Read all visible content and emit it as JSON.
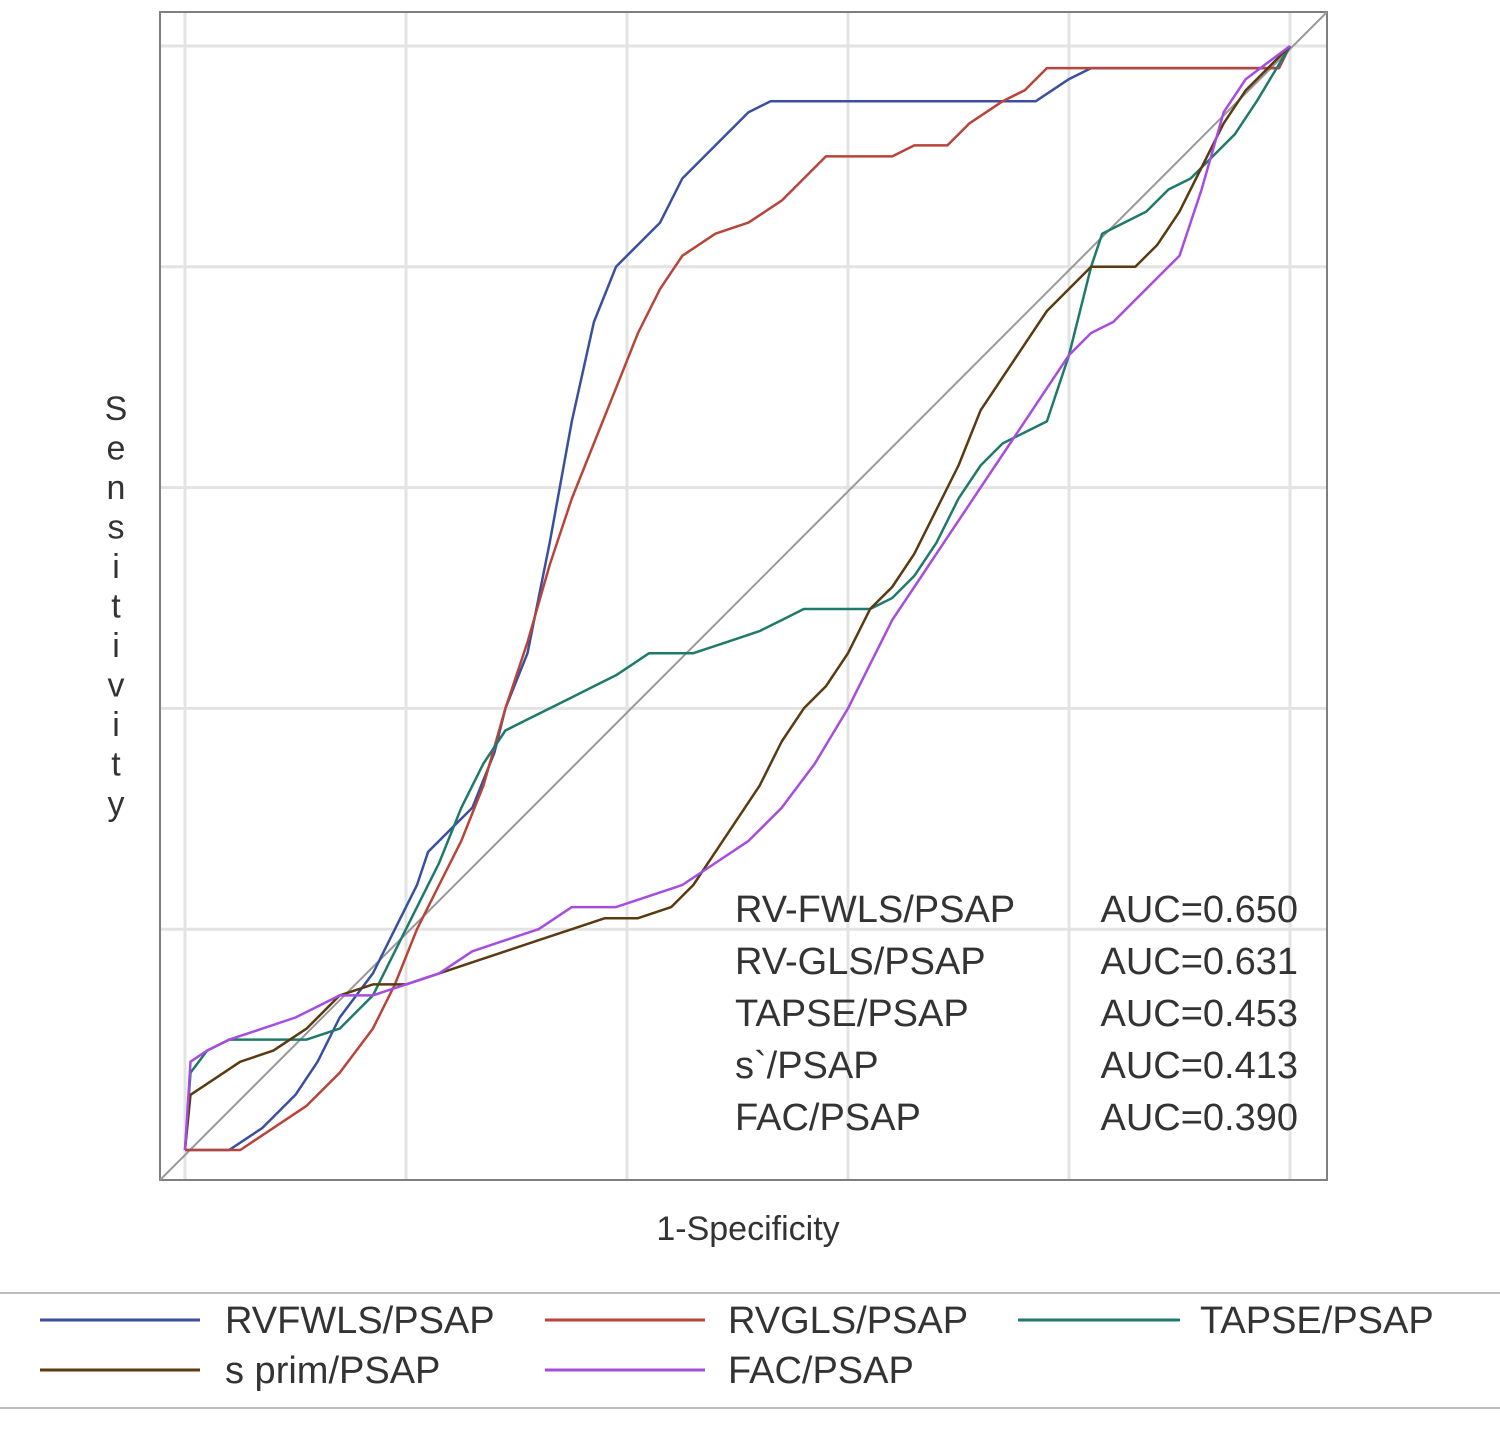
{
  "chart_data": {
    "type": "line",
    "title": "",
    "xlabel": "1-Specificity",
    "ylabel": "Sensitivity",
    "xlim": [
      0,
      1
    ],
    "ylim": [
      0,
      1
    ],
    "grid": true,
    "tick_labels_shown": false,
    "reference_line": {
      "from": [
        0,
        0
      ],
      "to": [
        1,
        1
      ],
      "color": "#999999"
    },
    "annotations": [
      {
        "name": "RV-FWLS/PSAP",
        "auc": "AUC=0.650"
      },
      {
        "name": "RV-GLS/PSAP",
        "auc": "AUC=0.631"
      },
      {
        "name": "TAPSE/PSAP",
        "auc": "AUC=0.453"
      },
      {
        "name": "s`/PSAP",
        "auc": "AUC=0.413"
      },
      {
        "name": "FAC/PSAP",
        "auc": "AUC=0.390"
      }
    ],
    "legend": {
      "placement": "bottom"
    },
    "series": [
      {
        "name": "RVFWLS/PSAP",
        "color": "#3b4fa0",
        "points": [
          [
            0,
            0
          ],
          [
            0.04,
            0
          ],
          [
            0.07,
            0.02
          ],
          [
            0.1,
            0.05
          ],
          [
            0.12,
            0.08
          ],
          [
            0.14,
            0.12
          ],
          [
            0.17,
            0.16
          ],
          [
            0.19,
            0.2
          ],
          [
            0.21,
            0.24
          ],
          [
            0.22,
            0.27
          ],
          [
            0.24,
            0.29
          ],
          [
            0.26,
            0.31
          ],
          [
            0.28,
            0.36
          ],
          [
            0.29,
            0.4
          ],
          [
            0.31,
            0.45
          ],
          [
            0.33,
            0.55
          ],
          [
            0.35,
            0.66
          ],
          [
            0.37,
            0.75
          ],
          [
            0.39,
            0.8
          ],
          [
            0.41,
            0.82
          ],
          [
            0.43,
            0.84
          ],
          [
            0.45,
            0.88
          ],
          [
            0.47,
            0.9
          ],
          [
            0.49,
            0.92
          ],
          [
            0.51,
            0.94
          ],
          [
            0.53,
            0.95
          ],
          [
            0.75,
            0.95
          ],
          [
            0.77,
            0.95
          ],
          [
            0.8,
            0.97
          ],
          [
            0.82,
            0.98
          ],
          [
            0.93,
            0.98
          ],
          [
            0.95,
            0.98
          ],
          [
            0.99,
            0.98
          ],
          [
            1,
            1
          ]
        ]
      },
      {
        "name": "RVGLS/PSAP",
        "color": "#b8443a",
        "points": [
          [
            0,
            0
          ],
          [
            0.05,
            0
          ],
          [
            0.08,
            0.02
          ],
          [
            0.11,
            0.04
          ],
          [
            0.14,
            0.07
          ],
          [
            0.17,
            0.11
          ],
          [
            0.19,
            0.15
          ],
          [
            0.21,
            0.2
          ],
          [
            0.23,
            0.24
          ],
          [
            0.25,
            0.28
          ],
          [
            0.27,
            0.33
          ],
          [
            0.29,
            0.4
          ],
          [
            0.31,
            0.46
          ],
          [
            0.33,
            0.53
          ],
          [
            0.35,
            0.59
          ],
          [
            0.37,
            0.64
          ],
          [
            0.39,
            0.69
          ],
          [
            0.41,
            0.74
          ],
          [
            0.43,
            0.78
          ],
          [
            0.45,
            0.81
          ],
          [
            0.48,
            0.83
          ],
          [
            0.51,
            0.84
          ],
          [
            0.54,
            0.86
          ],
          [
            0.56,
            0.88
          ],
          [
            0.58,
            0.9
          ],
          [
            0.61,
            0.9
          ],
          [
            0.64,
            0.9
          ],
          [
            0.66,
            0.91
          ],
          [
            0.69,
            0.91
          ],
          [
            0.71,
            0.93
          ],
          [
            0.74,
            0.95
          ],
          [
            0.76,
            0.96
          ],
          [
            0.78,
            0.98
          ],
          [
            0.82,
            0.98
          ],
          [
            0.99,
            0.98
          ],
          [
            1,
            1
          ]
        ]
      },
      {
        "name": "TAPSE/PSAP",
        "color": "#1f7a6b",
        "points": [
          [
            0,
            0
          ],
          [
            0.005,
            0.07
          ],
          [
            0.02,
            0.09
          ],
          [
            0.04,
            0.1
          ],
          [
            0.07,
            0.1
          ],
          [
            0.11,
            0.1
          ],
          [
            0.14,
            0.11
          ],
          [
            0.17,
            0.14
          ],
          [
            0.19,
            0.18
          ],
          [
            0.21,
            0.22
          ],
          [
            0.23,
            0.26
          ],
          [
            0.25,
            0.31
          ],
          [
            0.27,
            0.35
          ],
          [
            0.29,
            0.38
          ],
          [
            0.31,
            0.39
          ],
          [
            0.33,
            0.4
          ],
          [
            0.35,
            0.41
          ],
          [
            0.37,
            0.42
          ],
          [
            0.39,
            0.43
          ],
          [
            0.42,
            0.45
          ],
          [
            0.44,
            0.45
          ],
          [
            0.46,
            0.45
          ],
          [
            0.49,
            0.46
          ],
          [
            0.52,
            0.47
          ],
          [
            0.54,
            0.48
          ],
          [
            0.56,
            0.49
          ],
          [
            0.6,
            0.49
          ],
          [
            0.62,
            0.49
          ],
          [
            0.64,
            0.5
          ],
          [
            0.66,
            0.52
          ],
          [
            0.68,
            0.55
          ],
          [
            0.7,
            0.59
          ],
          [
            0.72,
            0.62
          ],
          [
            0.74,
            0.64
          ],
          [
            0.76,
            0.65
          ],
          [
            0.78,
            0.66
          ],
          [
            0.8,
            0.72
          ],
          [
            0.82,
            0.8
          ],
          [
            0.83,
            0.83
          ],
          [
            0.85,
            0.84
          ],
          [
            0.87,
            0.85
          ],
          [
            0.89,
            0.87
          ],
          [
            0.91,
            0.88
          ],
          [
            0.93,
            0.9
          ],
          [
            0.95,
            0.92
          ],
          [
            0.97,
            0.95
          ],
          [
            1,
            1
          ]
        ]
      },
      {
        "name": "s prim/PSAP",
        "color": "#5a3a10",
        "points": [
          [
            0,
            0
          ],
          [
            0.005,
            0.05
          ],
          [
            0.02,
            0.06
          ],
          [
            0.05,
            0.08
          ],
          [
            0.08,
            0.09
          ],
          [
            0.11,
            0.11
          ],
          [
            0.14,
            0.14
          ],
          [
            0.17,
            0.15
          ],
          [
            0.2,
            0.15
          ],
          [
            0.23,
            0.16
          ],
          [
            0.26,
            0.17
          ],
          [
            0.29,
            0.18
          ],
          [
            0.32,
            0.19
          ],
          [
            0.35,
            0.2
          ],
          [
            0.38,
            0.21
          ],
          [
            0.41,
            0.21
          ],
          [
            0.44,
            0.22
          ],
          [
            0.46,
            0.24
          ],
          [
            0.48,
            0.27
          ],
          [
            0.5,
            0.3
          ],
          [
            0.52,
            0.33
          ],
          [
            0.54,
            0.37
          ],
          [
            0.56,
            0.4
          ],
          [
            0.58,
            0.42
          ],
          [
            0.6,
            0.45
          ],
          [
            0.62,
            0.49
          ],
          [
            0.64,
            0.51
          ],
          [
            0.66,
            0.54
          ],
          [
            0.68,
            0.58
          ],
          [
            0.7,
            0.62
          ],
          [
            0.72,
            0.67
          ],
          [
            0.74,
            0.7
          ],
          [
            0.76,
            0.73
          ],
          [
            0.78,
            0.76
          ],
          [
            0.8,
            0.78
          ],
          [
            0.82,
            0.8
          ],
          [
            0.84,
            0.8
          ],
          [
            0.86,
            0.8
          ],
          [
            0.88,
            0.82
          ],
          [
            0.9,
            0.85
          ],
          [
            0.92,
            0.89
          ],
          [
            0.94,
            0.93
          ],
          [
            0.96,
            0.96
          ],
          [
            1,
            1
          ]
        ]
      },
      {
        "name": "FAC/PSAP",
        "color": "#a64de0",
        "points": [
          [
            0,
            0
          ],
          [
            0.005,
            0.08
          ],
          [
            0.02,
            0.09
          ],
          [
            0.04,
            0.1
          ],
          [
            0.07,
            0.11
          ],
          [
            0.1,
            0.12
          ],
          [
            0.12,
            0.13
          ],
          [
            0.14,
            0.14
          ],
          [
            0.17,
            0.14
          ],
          [
            0.2,
            0.15
          ],
          [
            0.23,
            0.16
          ],
          [
            0.26,
            0.18
          ],
          [
            0.29,
            0.19
          ],
          [
            0.32,
            0.2
          ],
          [
            0.35,
            0.22
          ],
          [
            0.39,
            0.22
          ],
          [
            0.42,
            0.23
          ],
          [
            0.45,
            0.24
          ],
          [
            0.48,
            0.26
          ],
          [
            0.51,
            0.28
          ],
          [
            0.54,
            0.31
          ],
          [
            0.57,
            0.35
          ],
          [
            0.6,
            0.4
          ],
          [
            0.62,
            0.44
          ],
          [
            0.64,
            0.48
          ],
          [
            0.66,
            0.51
          ],
          [
            0.68,
            0.54
          ],
          [
            0.7,
            0.57
          ],
          [
            0.72,
            0.6
          ],
          [
            0.74,
            0.63
          ],
          [
            0.76,
            0.66
          ],
          [
            0.78,
            0.69
          ],
          [
            0.8,
            0.72
          ],
          [
            0.82,
            0.74
          ],
          [
            0.84,
            0.75
          ],
          [
            0.86,
            0.77
          ],
          [
            0.88,
            0.79
          ],
          [
            0.9,
            0.81
          ],
          [
            0.92,
            0.87
          ],
          [
            0.94,
            0.94
          ],
          [
            0.96,
            0.97
          ],
          [
            1,
            1
          ]
        ]
      }
    ]
  }
}
